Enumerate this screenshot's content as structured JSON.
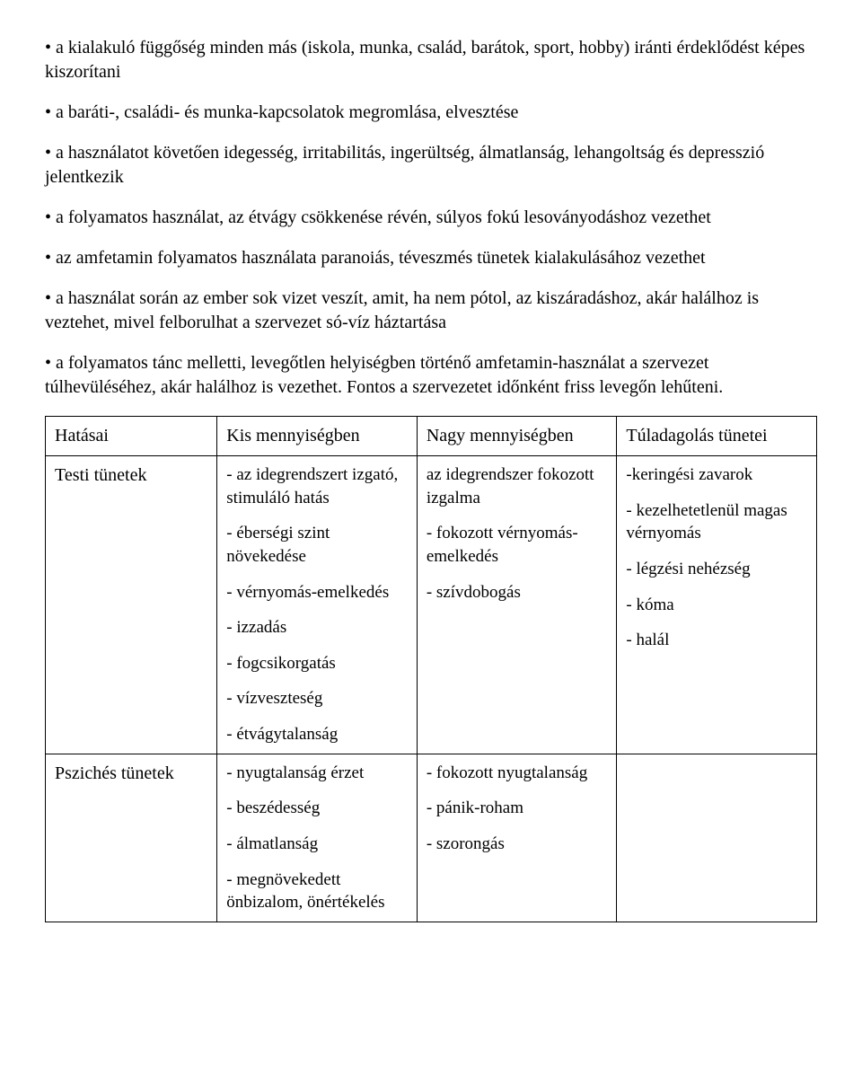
{
  "bullets": [
    "a kialakuló függőség minden más (iskola, munka, család, barátok, sport, hobby) iránti érdeklődést képes kiszorítani",
    "a baráti-, családi- és munka-kapcsolatok megromlása, elvesztése",
    "a használatot követően idegesség, irritabilitás, ingerültség, álmatlanság, lehangoltság és depresszió jelentkezik",
    "a folyamatos használat, az étvágy csökkenése révén, súlyos fokú lesoványodáshoz vezethet",
    "az amfetamin folyamatos használata paranoiás, téveszmés tünetek kialakulásához vezethet",
    "a használat során az ember sok vizet veszít, amit, ha nem pótol, az kiszáradáshoz, akár halálhoz is veztehet, mivel felborulhat a szervezet só-víz háztartása",
    "a folyamatos tánc melletti, levegőtlen helyiségben történő amfetamin-használat a szervezet túlhevüléséhez, akár halálhoz is vezethet. Fontos a szervezetet időnként friss levegőn lehűteni."
  ],
  "table": {
    "header": {
      "c1": "Hatásai",
      "c2": "Kis mennyiségben",
      "c3": "Nagy mennyiségben",
      "c4": "Túladagolás tünetei"
    },
    "row_testi": {
      "label": "Testi tünetek",
      "col2": [
        "- az idegrendszert izgató, stimuláló hatás",
        "- éberségi szint növekedése",
        "- vérnyomás-emelkedés",
        "- izzadás",
        "- fogcsikorgatás",
        "- vízveszteség",
        "- étvágytalanság"
      ],
      "col3": [
        "az idegrendszer fokozott izgalma",
        "- fokozott vérnyomás-emelkedés",
        "- szívdobogás"
      ],
      "col4": [
        "-keringési zavarok",
        "- kezelhetetlenül magas vérnyomás",
        "- légzési nehézség",
        "- kóma",
        "- halál"
      ]
    },
    "row_pszich": {
      "label": "Pszichés tünetek",
      "col2": [
        "- nyugtalanság érzet",
        "- beszédesség",
        "- álmatlanság",
        "- megnövekedett önbizalom, önértékelés"
      ],
      "col3": [
        "- fokozott nyugtalanság",
        "- pánik-roham",
        "- szorongás"
      ],
      "col4": []
    }
  }
}
